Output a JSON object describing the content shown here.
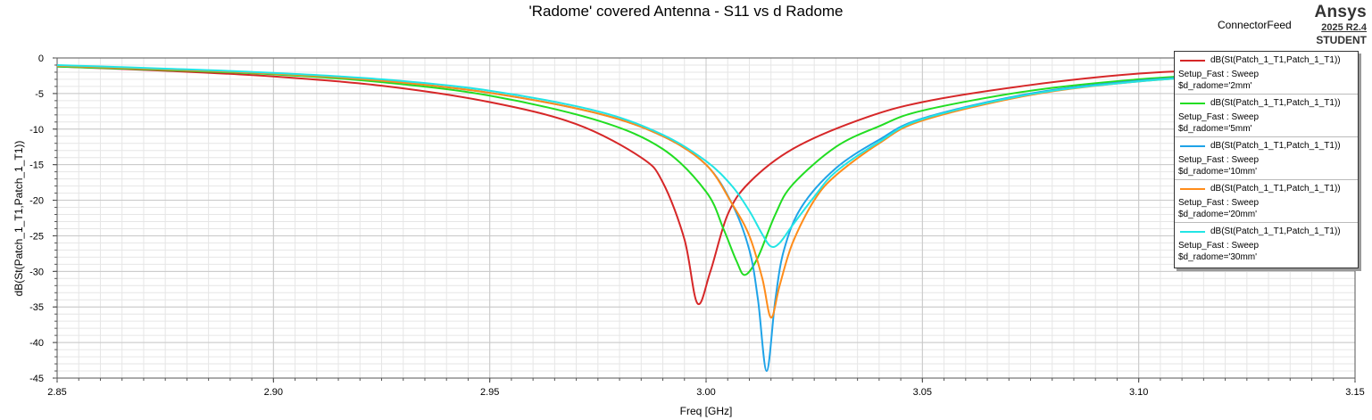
{
  "header": {
    "title": "'Radome' covered Antenna - S11 vs d Radome",
    "subtitle": "ConnectorFeed",
    "brand": "Ansys",
    "version": "2025 R2.4",
    "edition": "STUDENT"
  },
  "chart_data": {
    "type": "line",
    "title": "'Radome' covered Antenna - S11 vs d Radome",
    "xlabel": "Freq [GHz]",
    "ylabel": "dB(St(Patch_1_T1,Patch_1_T1))",
    "xlim": [
      2.85,
      3.15
    ],
    "ylim": [
      -45,
      0
    ],
    "xticks": [
      "2.85",
      "2.90",
      "2.95",
      "3.00",
      "3.05",
      "3.10",
      "3.15"
    ],
    "yticks": [
      "0",
      "-5",
      "-10",
      "-15",
      "-20",
      "-25",
      "-30",
      "-35",
      "-40",
      "-45"
    ],
    "grid": true,
    "legend_position": "top-right",
    "series": [
      {
        "expr": "dB(St(Patch_1_T1,Patch_1_T1))",
        "setup": "Setup_Fast : Sweep",
        "param": "$d_radome='2mm'",
        "color": "#d62728",
        "x": [
          2.85,
          2.875,
          2.9,
          2.925,
          2.95,
          2.97,
          2.985,
          2.99,
          2.995,
          2.998,
          3.001,
          3.005,
          3.01,
          3.02,
          3.035,
          3.05,
          3.075,
          3.1,
          3.125,
          3.15
        ],
        "y": [
          -1.2,
          -1.8,
          -2.6,
          -3.9,
          -6.2,
          -9.3,
          -14.0,
          -17.5,
          -25.5,
          -34.5,
          -30.0,
          -22.0,
          -17.5,
          -12.8,
          -8.8,
          -6.2,
          -3.8,
          -2.2,
          -1.5,
          -1.0
        ]
      },
      {
        "expr": "dB(St(Patch_1_T1,Patch_1_T1))",
        "setup": "Setup_Fast : Sweep",
        "param": "$d_radome='5mm'",
        "color": "#22dd22",
        "x": [
          2.85,
          2.875,
          2.9,
          2.925,
          2.95,
          2.975,
          2.99,
          3.0,
          3.004,
          3.007,
          3.009,
          3.012,
          3.016,
          3.02,
          3.03,
          3.04,
          3.05,
          3.075,
          3.1,
          3.125,
          3.15
        ],
        "y": [
          -1.2,
          -1.7,
          -2.3,
          -3.4,
          -5.3,
          -8.8,
          -12.8,
          -18.8,
          -24.0,
          -28.5,
          -30.5,
          -28.0,
          -22.0,
          -17.8,
          -12.5,
          -9.6,
          -7.4,
          -4.6,
          -3.0,
          -2.1,
          -1.4
        ]
      },
      {
        "expr": "dB(St(Patch_1_T1,Patch_1_T1))",
        "setup": "Setup_Fast : Sweep",
        "param": "$d_radome='10mm'",
        "color": "#1fa3e8",
        "x": [
          2.85,
          2.875,
          2.9,
          2.925,
          2.95,
          2.975,
          2.99,
          3.0,
          3.006,
          3.01,
          3.012,
          3.014,
          3.016,
          3.018,
          3.022,
          3.03,
          3.04,
          3.05,
          3.075,
          3.1,
          3.125,
          3.15
        ],
        "y": [
          -1.1,
          -1.6,
          -2.2,
          -3.2,
          -4.9,
          -7.8,
          -11.0,
          -15.0,
          -20.5,
          -27.0,
          -34.0,
          -44.0,
          -34.0,
          -27.0,
          -21.0,
          -15.5,
          -11.5,
          -8.5,
          -5.0,
          -3.2,
          -2.3,
          -1.6
        ]
      },
      {
        "expr": "dB(St(Patch_1_T1,Patch_1_T1))",
        "setup": "Setup_Fast : Sweep",
        "param": "$d_radome='20mm'",
        "color": "#ff8c1a",
        "x": [
          2.85,
          2.875,
          2.9,
          2.925,
          2.95,
          2.975,
          2.99,
          3.0,
          3.006,
          3.01,
          3.013,
          3.015,
          3.017,
          3.02,
          3.025,
          3.03,
          3.04,
          3.05,
          3.075,
          3.1,
          3.125,
          3.15
        ],
        "y": [
          -1.1,
          -1.6,
          -2.2,
          -3.2,
          -4.9,
          -7.8,
          -11.0,
          -15.0,
          -20.5,
          -25.0,
          -31.0,
          -36.5,
          -32.0,
          -26.0,
          -20.0,
          -16.5,
          -12.0,
          -8.8,
          -5.2,
          -3.3,
          -2.3,
          -1.6
        ]
      },
      {
        "expr": "dB(St(Patch_1_T1,Patch_1_T1))",
        "setup": "Setup_Fast : Sweep",
        "param": "$d_radome='30mm'",
        "color": "#22e5e5",
        "x": [
          2.85,
          2.875,
          2.9,
          2.925,
          2.95,
          2.975,
          2.99,
          3.0,
          3.006,
          3.01,
          3.013,
          3.015,
          3.017,
          3.02,
          3.025,
          3.03,
          3.04,
          3.05,
          3.075,
          3.1,
          3.125,
          3.15
        ],
        "y": [
          -1.0,
          -1.5,
          -2.1,
          -3.0,
          -4.6,
          -7.5,
          -10.8,
          -14.5,
          -18.0,
          -21.5,
          -24.8,
          -26.5,
          -26.0,
          -23.5,
          -19.5,
          -16.0,
          -11.8,
          -8.6,
          -5.1,
          -3.3,
          -2.3,
          -1.6
        ]
      }
    ]
  }
}
